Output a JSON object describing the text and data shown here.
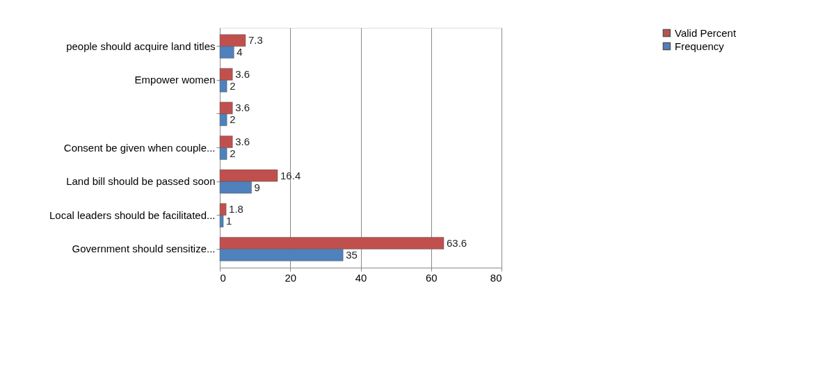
{
  "chart_data": {
    "type": "bar",
    "orientation": "horizontal",
    "categories": [
      "people should acquire land titles",
      "Empower women",
      null,
      "Consent be given when couple...",
      "Land bill should be passed soon",
      "Local leaders should be facilitated...",
      "Government should sensitize..."
    ],
    "series": [
      {
        "name": "Valid Percent",
        "color": "#c0504d",
        "values": [
          7.3,
          3.6,
          3.6,
          3.6,
          16.4,
          1.8,
          63.6
        ]
      },
      {
        "name": "Frequency",
        "color": "#4f81bd",
        "values": [
          4,
          2,
          2,
          2,
          9,
          1,
          35
        ]
      }
    ],
    "xlim": [
      0,
      80
    ],
    "xticks": [
      0,
      20,
      40,
      60,
      80
    ],
    "grid": "x",
    "legend": "right",
    "data_labels": true
  }
}
